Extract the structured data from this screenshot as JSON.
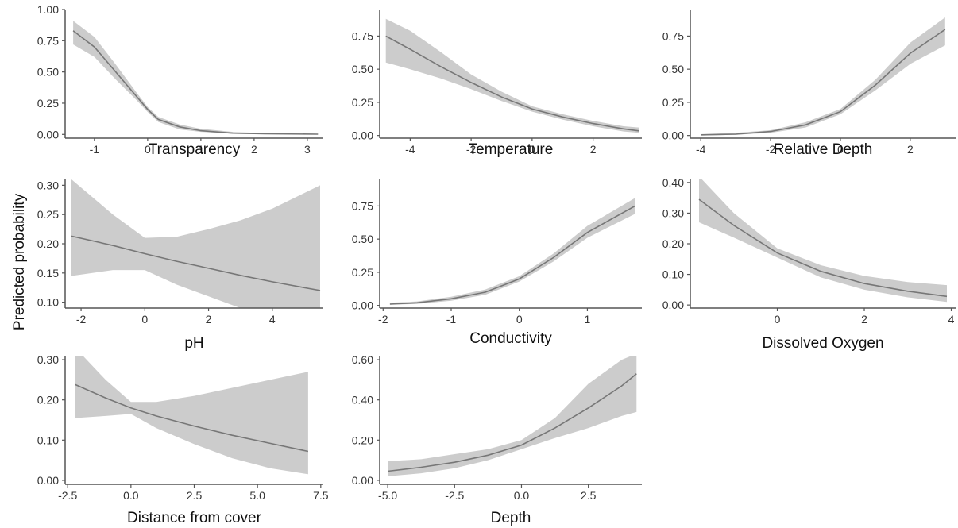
{
  "figure": {
    "y_axis_label": "Predicted probability",
    "colors": {
      "band": "#cccccc",
      "line": "#777777",
      "axis": "#555555",
      "text": "#333333"
    }
  },
  "chart_data": [
    {
      "type": "line",
      "xlabel": "Transparency",
      "xlim": [
        -1.55,
        3.3
      ],
      "ylim": [
        -0.03,
        1.0
      ],
      "xticks": [
        -1,
        0,
        1,
        2,
        3
      ],
      "yticks": [
        0.0,
        0.25,
        0.5,
        0.75,
        1.0
      ],
      "xtick_labels": [
        "-1",
        "0",
        "1",
        "2",
        "3"
      ],
      "ytick_labels": [
        "0.00",
        "0.25",
        "0.50",
        "0.75",
        "1.00"
      ],
      "x": [
        -1.4,
        -1.0,
        -0.6,
        -0.2,
        0.0,
        0.2,
        0.6,
        1.0,
        1.6,
        2.2,
        3.2
      ],
      "y": [
        0.83,
        0.7,
        0.5,
        0.3,
        0.2,
        0.12,
        0.06,
        0.03,
        0.01,
        0.005,
        0.002
      ],
      "lower": [
        0.72,
        0.62,
        0.44,
        0.27,
        0.18,
        0.1,
        0.04,
        0.02,
        0.005,
        0.002,
        0.0
      ],
      "upper": [
        0.91,
        0.78,
        0.56,
        0.33,
        0.22,
        0.14,
        0.08,
        0.045,
        0.02,
        0.01,
        0.005
      ]
    },
    {
      "type": "line",
      "xlabel": "Temperature",
      "xlim": [
        -5.0,
        3.6
      ],
      "ylim": [
        -0.02,
        0.95
      ],
      "xticks": [
        -4,
        -2,
        0,
        2
      ],
      "yticks": [
        0.0,
        0.25,
        0.5,
        0.75
      ],
      "xtick_labels": [
        "-4",
        "-2",
        "0",
        "2"
      ],
      "ytick_labels": [
        "0.00",
        "0.25",
        "0.50",
        "0.75"
      ],
      "x": [
        -4.8,
        -4.0,
        -3.0,
        -2.0,
        -1.0,
        0.0,
        1.0,
        2.0,
        3.0,
        3.5
      ],
      "y": [
        0.75,
        0.65,
        0.52,
        0.4,
        0.29,
        0.2,
        0.14,
        0.09,
        0.05,
        0.035
      ],
      "lower": [
        0.55,
        0.5,
        0.43,
        0.35,
        0.26,
        0.18,
        0.12,
        0.07,
        0.03,
        0.02
      ],
      "upper": [
        0.88,
        0.79,
        0.63,
        0.46,
        0.33,
        0.22,
        0.16,
        0.11,
        0.07,
        0.06
      ]
    },
    {
      "type": "line",
      "xlabel": "Relative Depth",
      "xlim": [
        -4.3,
        3.3
      ],
      "ylim": [
        -0.02,
        0.95
      ],
      "xticks": [
        -4,
        -2,
        0,
        2
      ],
      "yticks": [
        0.0,
        0.25,
        0.5,
        0.75
      ],
      "xtick_labels": [
        "-4",
        "-2",
        "0",
        "2"
      ],
      "ytick_labels": [
        "0.00",
        "0.25",
        "0.50",
        "0.75"
      ],
      "x": [
        -4.0,
        -3.0,
        -2.0,
        -1.0,
        0.0,
        1.0,
        2.0,
        3.0
      ],
      "y": [
        0.005,
        0.01,
        0.03,
        0.08,
        0.18,
        0.38,
        0.62,
        0.8
      ],
      "lower": [
        0.0,
        0.005,
        0.02,
        0.06,
        0.16,
        0.34,
        0.54,
        0.68
      ],
      "upper": [
        0.01,
        0.02,
        0.04,
        0.1,
        0.2,
        0.42,
        0.7,
        0.89
      ]
    },
    {
      "type": "line",
      "xlabel": "pH",
      "xlim": [
        -2.5,
        5.6
      ],
      "ylim": [
        0.09,
        0.31
      ],
      "xticks": [
        -2,
        0,
        2,
        4
      ],
      "yticks": [
        0.1,
        0.15,
        0.2,
        0.25,
        0.3
      ],
      "xtick_labels": [
        "-2",
        "0",
        "2",
        "4"
      ],
      "ytick_labels": [
        "0.10",
        "0.15",
        "0.20",
        "0.25",
        "0.30"
      ],
      "x": [
        -2.3,
        -1.0,
        0.0,
        1.0,
        2.0,
        3.0,
        4.0,
        5.5
      ],
      "y": [
        0.213,
        0.197,
        0.183,
        0.17,
        0.158,
        0.146,
        0.135,
        0.12
      ],
      "lower": [
        0.145,
        0.155,
        0.155,
        0.13,
        0.11,
        0.09,
        0.07,
        0.045
      ],
      "upper": [
        0.31,
        0.25,
        0.21,
        0.212,
        0.225,
        0.24,
        0.26,
        0.3
      ]
    },
    {
      "type": "line",
      "xlabel": "Conductivity",
      "xlim": [
        -2.05,
        1.8
      ],
      "ylim": [
        -0.02,
        0.95
      ],
      "xticks": [
        -2,
        -1,
        0,
        1
      ],
      "yticks": [
        0.0,
        0.25,
        0.5,
        0.75
      ],
      "xtick_labels": [
        "-2",
        "-1",
        "0",
        "1"
      ],
      "ytick_labels": [
        "0.00",
        "0.25",
        "0.50",
        "0.75"
      ],
      "x": [
        -1.9,
        -1.5,
        -1.0,
        -0.5,
        0.0,
        0.5,
        1.0,
        1.7
      ],
      "y": [
        0.01,
        0.02,
        0.05,
        0.1,
        0.2,
        0.36,
        0.55,
        0.75
      ],
      "lower": [
        0.005,
        0.012,
        0.035,
        0.08,
        0.18,
        0.33,
        0.51,
        0.69
      ],
      "upper": [
        0.02,
        0.03,
        0.065,
        0.12,
        0.22,
        0.39,
        0.6,
        0.81
      ]
    },
    {
      "type": "line",
      "xlabel": "Dissolved Oxygen",
      "xlim": [
        -2.0,
        4.1
      ],
      "ylim": [
        -0.01,
        0.41
      ],
      "xticks": [
        0,
        2,
        4
      ],
      "yticks": [
        0.0,
        0.1,
        0.2,
        0.3,
        0.4
      ],
      "xtick_labels": [
        "0",
        "2",
        "4"
      ],
      "ytick_labels": [
        "0.00",
        "0.10",
        "0.20",
        "0.30",
        "0.40"
      ],
      "x": [
        -1.8,
        -1.0,
        0.0,
        1.0,
        2.0,
        3.0,
        3.9
      ],
      "y": [
        0.345,
        0.26,
        0.17,
        0.11,
        0.07,
        0.045,
        0.028
      ],
      "lower": [
        0.27,
        0.22,
        0.155,
        0.09,
        0.05,
        0.025,
        0.01
      ],
      "upper": [
        0.42,
        0.3,
        0.185,
        0.13,
        0.095,
        0.075,
        0.065
      ]
    },
    {
      "type": "line",
      "xlabel": "Distance from cover",
      "xlim": [
        -2.6,
        7.6
      ],
      "ylim": [
        -0.01,
        0.31
      ],
      "xticks": [
        -2.5,
        0.0,
        2.5,
        5.0,
        7.5
      ],
      "yticks": [
        0.0,
        0.1,
        0.2,
        0.3
      ],
      "xtick_labels": [
        "-2.5",
        "0.0",
        "2.5",
        "5.0",
        "7.5"
      ],
      "ytick_labels": [
        "0.00",
        "0.10",
        "0.20",
        "0.30"
      ],
      "x": [
        -2.2,
        -1.0,
        0.0,
        1.0,
        2.5,
        4.0,
        5.5,
        7.0
      ],
      "y": [
        0.238,
        0.205,
        0.18,
        0.16,
        0.135,
        0.112,
        0.092,
        0.072
      ],
      "lower": [
        0.155,
        0.16,
        0.165,
        0.13,
        0.09,
        0.055,
        0.03,
        0.015
      ],
      "upper": [
        0.33,
        0.25,
        0.195,
        0.195,
        0.21,
        0.23,
        0.25,
        0.27
      ]
    },
    {
      "type": "line",
      "xlabel": "Depth",
      "xlim": [
        -5.3,
        4.5
      ],
      "ylim": [
        -0.02,
        0.62
      ],
      "xticks": [
        -5.0,
        -2.5,
        0.0,
        2.5
      ],
      "yticks": [
        0.0,
        0.2,
        0.4,
        0.6
      ],
      "xtick_labels": [
        "-5.0",
        "-2.5",
        "0.0",
        "2.5"
      ],
      "ytick_labels": [
        "0.00",
        "0.20",
        "0.40",
        "0.60"
      ],
      "x": [
        -5.0,
        -3.75,
        -2.5,
        -1.25,
        0.0,
        1.25,
        2.5,
        3.75,
        4.3
      ],
      "y": [
        0.045,
        0.065,
        0.09,
        0.125,
        0.175,
        0.26,
        0.36,
        0.47,
        0.53
      ],
      "lower": [
        0.02,
        0.035,
        0.06,
        0.1,
        0.155,
        0.21,
        0.26,
        0.32,
        0.34
      ],
      "upper": [
        0.095,
        0.105,
        0.13,
        0.155,
        0.2,
        0.31,
        0.48,
        0.6,
        0.63
      ]
    }
  ]
}
